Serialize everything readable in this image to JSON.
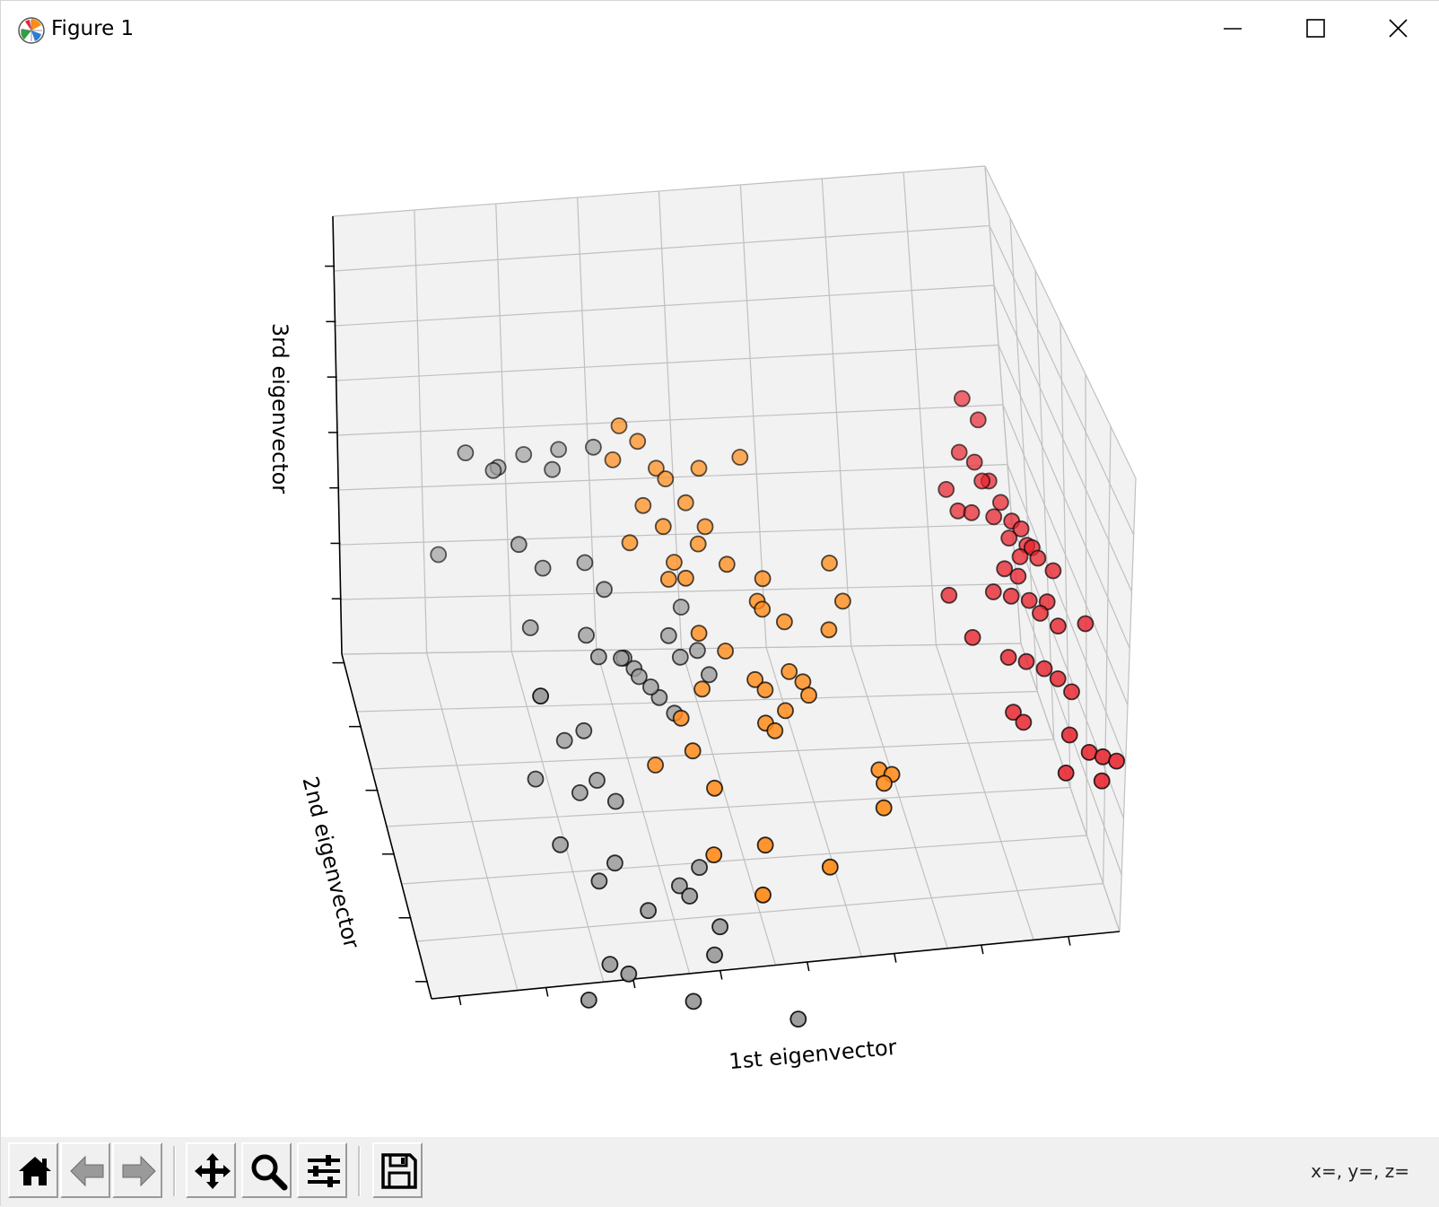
{
  "window": {
    "title": "Figure 1",
    "app_icon": "matplotlib-icon",
    "controls": [
      "minimize-icon",
      "maximize-icon",
      "close-icon"
    ]
  },
  "toolbar": {
    "buttons": [
      {
        "name": "home-button",
        "icon": "home-icon",
        "tooltip": ""
      },
      {
        "name": "back-button",
        "icon": "arrow-left-icon",
        "tooltip": ""
      },
      {
        "name": "forward-button",
        "icon": "arrow-right-icon",
        "tooltip": ""
      },
      {
        "name": "pan-button",
        "icon": "move-icon",
        "tooltip": ""
      },
      {
        "name": "zoom-button",
        "icon": "magnifier-icon",
        "tooltip": ""
      },
      {
        "name": "configure-subplots-button",
        "icon": "sliders-icon",
        "tooltip": ""
      },
      {
        "name": "save-button",
        "icon": "floppy-disk-icon",
        "tooltip": ""
      }
    ],
    "coordinates": "x=, y=, z="
  },
  "chart_data": {
    "type": "scatter",
    "projection": "3d",
    "title": "",
    "xlabel": "1st eigenvector",
    "ylabel": "2nd eigenvector",
    "zlabel": "3rd eigenvector",
    "xlim": [
      0,
      8
    ],
    "ylim": [
      0,
      6
    ],
    "zlim": [
      0,
      8
    ],
    "grid": true,
    "tick_labels_visible": false,
    "colors": {
      "gray": "#9e9e9e",
      "orange": "#ff8c1a",
      "red": "#e8232d",
      "edge": "#000000"
    },
    "series": [
      {
        "color": "gray",
        "points": [
          [
            1.3,
            0.18,
            5.0
          ],
          [
            1.4,
            3.85,
            5.4
          ],
          [
            1.1,
            4.0,
            5.6
          ],
          [
            1.5,
            4.1,
            5.2
          ],
          [
            1.8,
            4.1,
            5.4
          ],
          [
            2.1,
            3.9,
            5.3
          ],
          [
            2.2,
            4.05,
            5.5
          ],
          [
            2.6,
            4.0,
            5.55
          ],
          [
            1.6,
            3.3,
            4.6
          ],
          [
            0.8,
            4.1,
            3.7
          ],
          [
            1.9,
            3.4,
            4.05
          ],
          [
            2.4,
            3.45,
            4.05
          ],
          [
            2.3,
            2.8,
            3.4
          ],
          [
            2.4,
            2.55,
            3.25
          ],
          [
            2.7,
            2.75,
            3.0
          ],
          [
            2.75,
            2.85,
            2.9
          ],
          [
            2.85,
            2.75,
            2.8
          ],
          [
            3.1,
            2.5,
            2.5
          ],
          [
            3.25,
            2.35,
            2.35
          ],
          [
            3.4,
            2.8,
            2.9
          ],
          [
            3.6,
            2.8,
            3.0
          ],
          [
            3.7,
            2.6,
            2.75
          ],
          [
            2.2,
            2.4,
            2.1
          ],
          [
            2.0,
            2.55,
            1.8
          ],
          [
            1.6,
            2.2,
            1.5
          ],
          [
            2.3,
            2.1,
            1.5
          ],
          [
            2.1,
            2.1,
            1.3
          ],
          [
            2.5,
            2.0,
            1.2
          ],
          [
            1.8,
            1.7,
            0.8
          ],
          [
            2.4,
            1.5,
            0.6
          ],
          [
            2.2,
            1.4,
            0.4
          ],
          [
            2.7,
            1.0,
            0.2
          ],
          [
            3.1,
            1.2,
            0.4
          ],
          [
            3.2,
            1.1,
            0.3
          ],
          [
            3.35,
            1.3,
            0.6
          ],
          [
            3.5,
            0.8,
            0.0
          ],
          [
            3.4,
            0.6,
            -0.3
          ],
          [
            2.2,
            0.7,
            -0.4
          ],
          [
            2.4,
            0.6,
            -0.5
          ],
          [
            1.9,
            0.4,
            -0.7
          ],
          [
            3.1,
            0.3,
            -0.8
          ],
          [
            4.3,
            0.2,
            -1.2
          ],
          [
            2.6,
            3.3,
            3.7
          ],
          [
            3.5,
            3.3,
            3.3
          ],
          [
            3.3,
            3.0,
            3.1
          ],
          [
            2.9,
            2.7,
            2.7
          ],
          [
            3.0,
            2.5,
            2.7
          ],
          [
            1.7,
            3.1,
            3.3
          ]
        ]
      },
      {
        "color": "orange",
        "points": [
          [
            2.9,
            4.0,
            5.9
          ],
          [
            3.1,
            3.9,
            5.7
          ],
          [
            2.8,
            3.85,
            5.45
          ],
          [
            3.3,
            3.8,
            5.3
          ],
          [
            3.4,
            3.75,
            5.15
          ],
          [
            3.8,
            3.8,
            5.25
          ],
          [
            4.3,
            3.9,
            5.3
          ],
          [
            3.1,
            3.55,
            4.9
          ],
          [
            3.6,
            3.55,
            4.9
          ],
          [
            3.3,
            3.35,
            4.7
          ],
          [
            3.8,
            3.4,
            4.6
          ],
          [
            2.9,
            3.3,
            4.5
          ],
          [
            3.7,
            3.3,
            4.4
          ],
          [
            3.4,
            3.2,
            4.2
          ],
          [
            3.3,
            3.0,
            4.1
          ],
          [
            3.5,
            3.0,
            4.1
          ],
          [
            4.0,
            3.1,
            4.2
          ],
          [
            4.4,
            3.0,
            4.0
          ],
          [
            5.2,
            3.1,
            4.1
          ],
          [
            4.3,
            2.8,
            3.8
          ],
          [
            4.35,
            2.75,
            3.7
          ],
          [
            4.6,
            2.7,
            3.5
          ],
          [
            5.3,
            2.8,
            3.7
          ],
          [
            5.1,
            2.6,
            3.4
          ],
          [
            3.6,
            2.7,
            3.4
          ],
          [
            3.9,
            2.65,
            3.1
          ],
          [
            4.2,
            2.4,
            2.8
          ],
          [
            4.3,
            2.3,
            2.7
          ],
          [
            4.6,
            2.4,
            2.9
          ],
          [
            4.75,
            2.35,
            2.75
          ],
          [
            4.8,
            2.25,
            2.6
          ],
          [
            4.5,
            2.1,
            2.5
          ],
          [
            4.25,
            2.0,
            2.4
          ],
          [
            4.35,
            1.95,
            2.3
          ],
          [
            3.3,
            2.2,
            2.4
          ],
          [
            3.4,
            2.0,
            2.0
          ],
          [
            3.6,
            1.7,
            1.6
          ],
          [
            5.5,
            1.6,
            1.8
          ],
          [
            5.55,
            1.55,
            1.6
          ],
          [
            5.65,
            1.6,
            1.7
          ],
          [
            5.5,
            1.3,
            1.4
          ],
          [
            3.5,
            1.2,
            0.9
          ],
          [
            4.1,
            1.2,
            1.0
          ],
          [
            4.8,
            0.9,
            0.8
          ],
          [
            4.0,
            0.8,
            0.5
          ],
          [
            3.6,
            2.5,
            2.6
          ],
          [
            3.0,
            2.2,
            1.6
          ]
        ]
      },
      {
        "color": "red",
        "points": [
          [
            7.0,
            4.4,
            5.6
          ],
          [
            7.15,
            4.2,
            5.4
          ],
          [
            6.9,
            4.05,
            5.0
          ],
          [
            7.05,
            3.9,
            4.95
          ],
          [
            7.1,
            3.7,
            4.8
          ],
          [
            6.8,
            3.6,
            4.4
          ],
          [
            6.95,
            3.55,
            4.4
          ],
          [
            7.3,
            3.6,
            4.5
          ],
          [
            7.2,
            3.5,
            4.35
          ],
          [
            7.4,
            3.45,
            4.3
          ],
          [
            7.5,
            3.4,
            4.2
          ],
          [
            7.35,
            3.35,
            4.1
          ],
          [
            7.55,
            3.3,
            4.0
          ],
          [
            7.6,
            3.25,
            4.0
          ],
          [
            7.45,
            3.2,
            3.9
          ],
          [
            7.65,
            3.15,
            3.9
          ],
          [
            7.25,
            3.1,
            3.8
          ],
          [
            7.4,
            3.05,
            3.7
          ],
          [
            7.1,
            3.0,
            3.5
          ],
          [
            7.3,
            2.95,
            3.45
          ],
          [
            7.5,
            2.9,
            3.4
          ],
          [
            7.7,
            2.85,
            3.4
          ],
          [
            7.6,
            2.75,
            3.3
          ],
          [
            7.8,
            2.7,
            3.1
          ],
          [
            8.1,
            2.6,
            3.2
          ],
          [
            7.2,
            2.6,
            2.7
          ],
          [
            7.4,
            2.55,
            2.65
          ],
          [
            7.6,
            2.5,
            2.55
          ],
          [
            7.75,
            2.45,
            2.4
          ],
          [
            7.9,
            2.4,
            2.2
          ],
          [
            7.2,
            2.3,
            2.0
          ],
          [
            7.3,
            2.2,
            1.9
          ],
          [
            7.8,
            2.0,
            1.8
          ],
          [
            8.0,
            1.85,
            1.6
          ],
          [
            8.15,
            1.8,
            1.55
          ],
          [
            8.3,
            1.75,
            1.5
          ],
          [
            8.1,
            1.6,
            1.3
          ],
          [
            7.7,
            1.7,
            1.4
          ],
          [
            6.8,
            2.7,
            3.0
          ],
          [
            6.6,
            3.1,
            3.4
          ],
          [
            6.7,
            3.8,
            4.6
          ],
          [
            7.8,
            3.0,
            3.8
          ],
          [
            7.2,
            3.8,
            4.7
          ]
        ]
      }
    ]
  }
}
